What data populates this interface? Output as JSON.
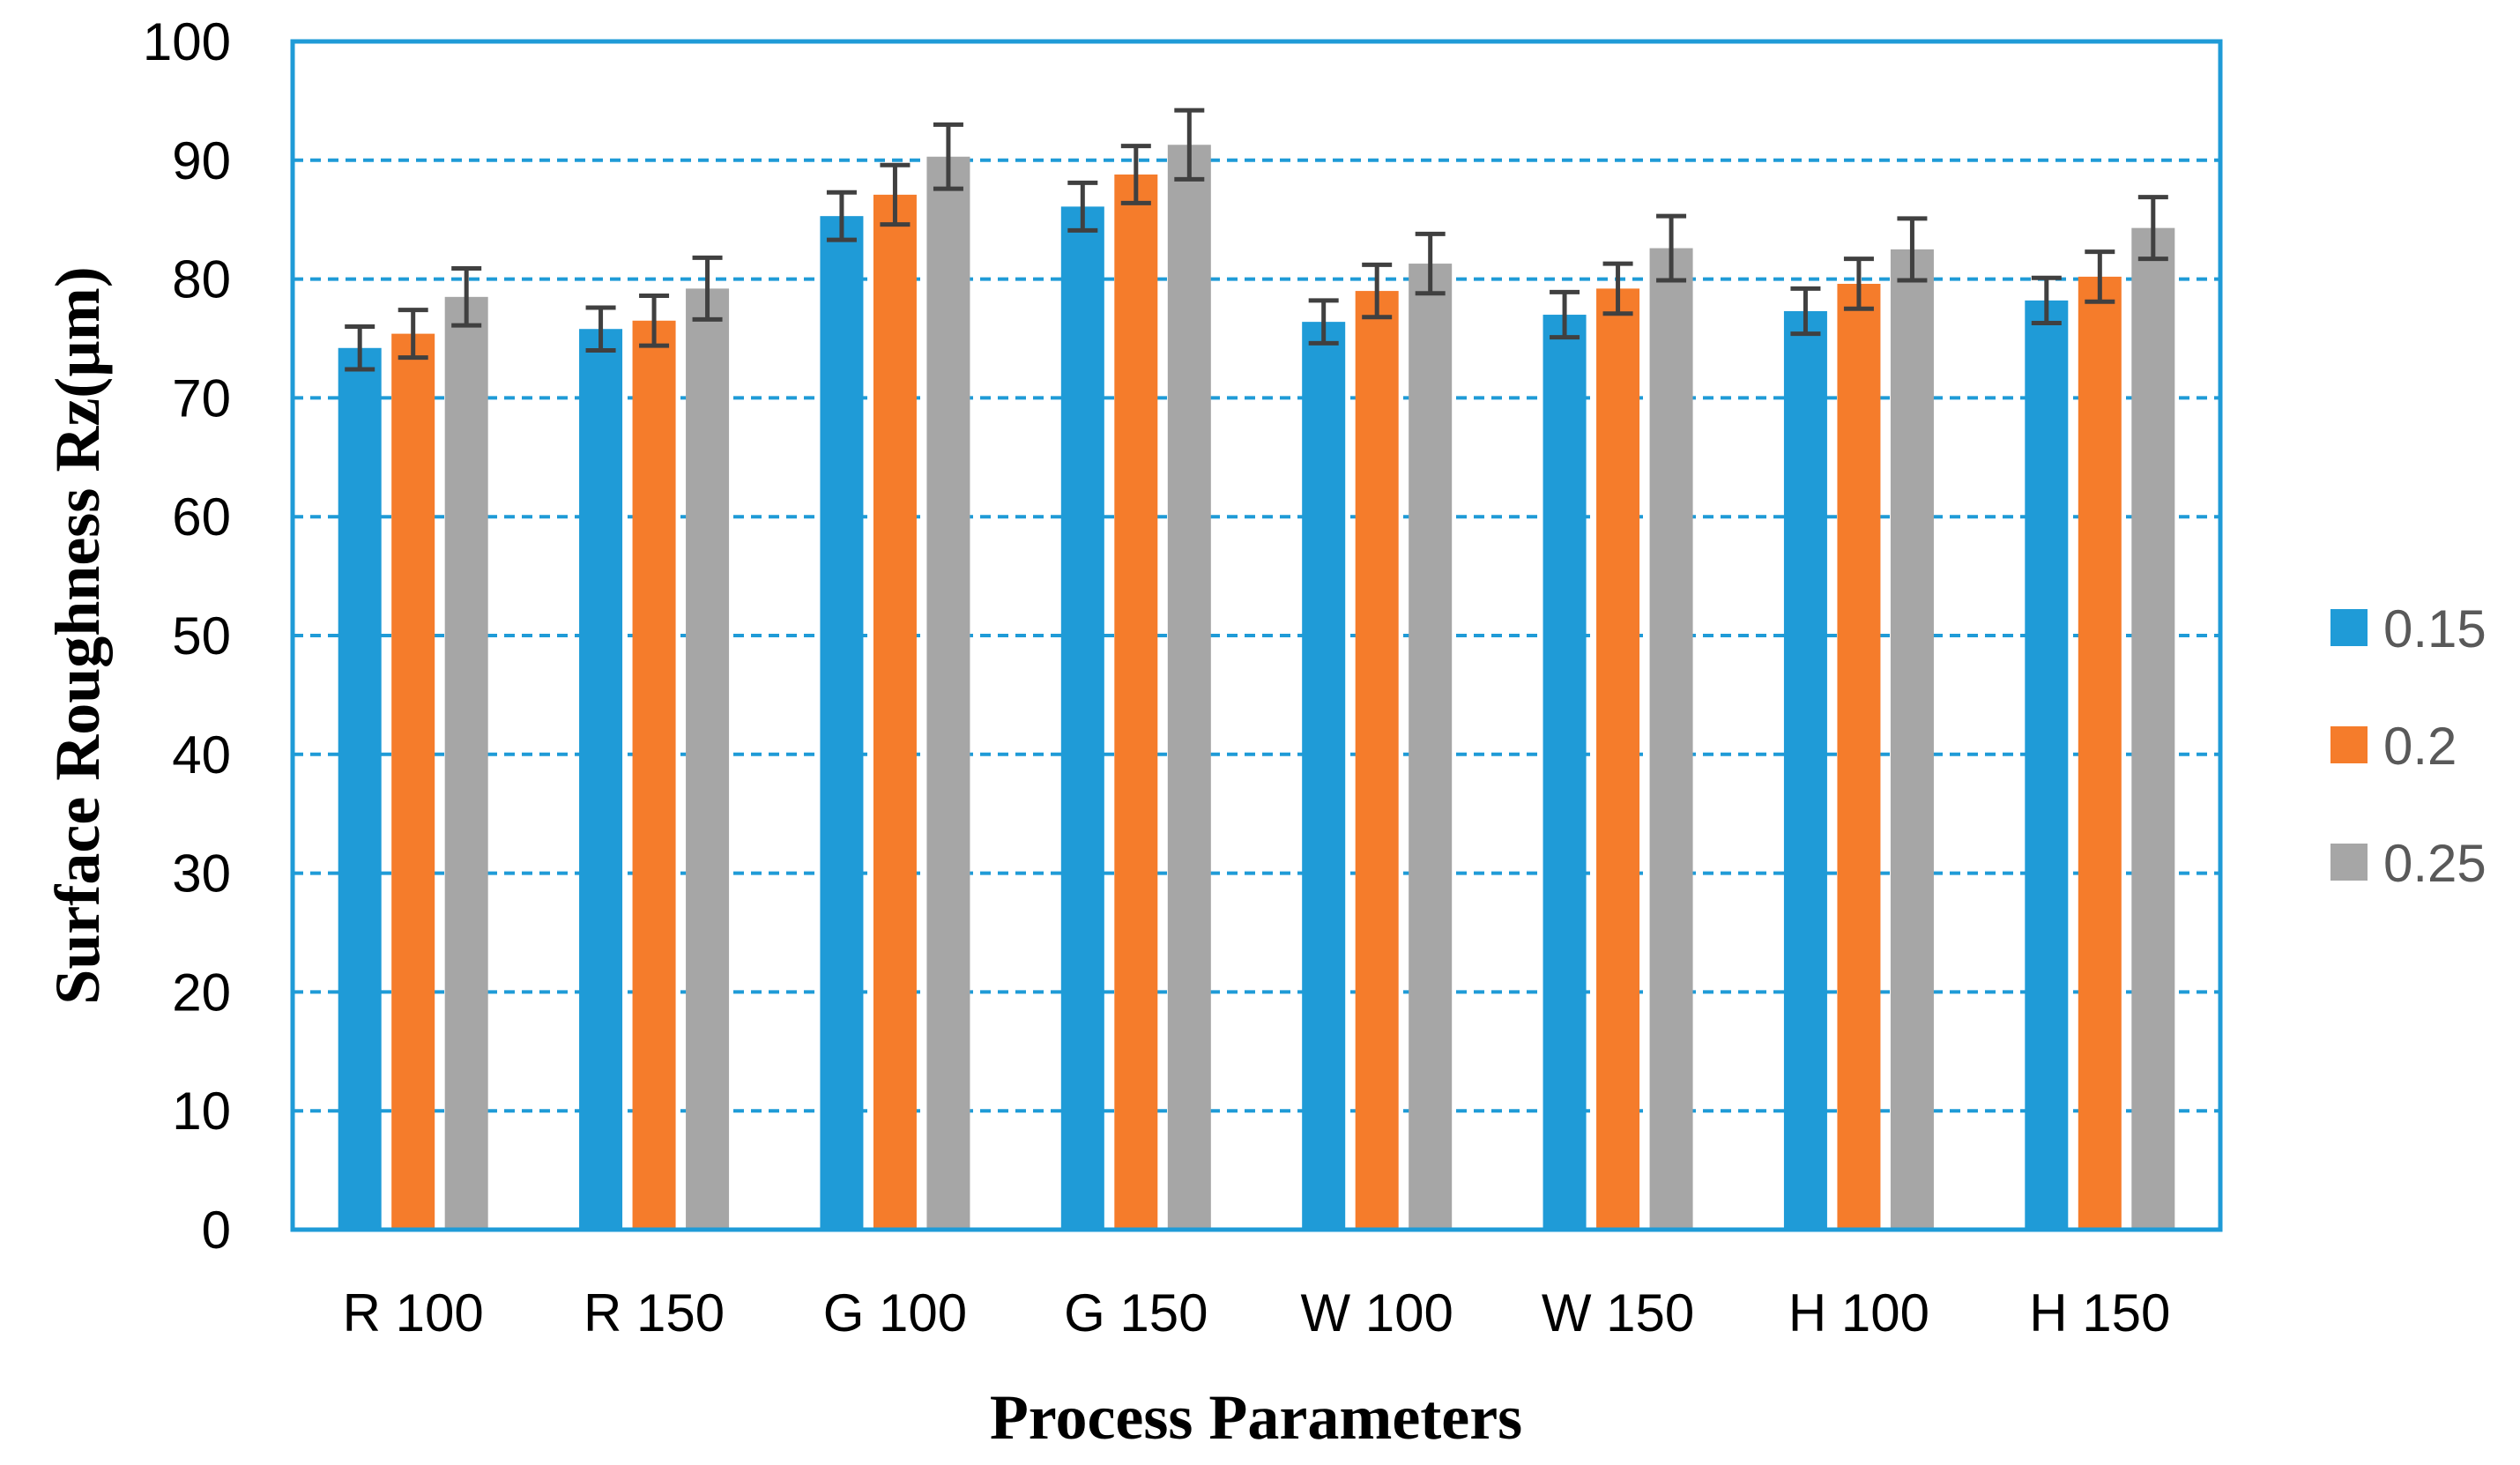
{
  "chart_data": {
    "type": "bar",
    "title": "",
    "xlabel": "Process Parameters",
    "ylabel": "Surface  Roughness Rz(µm)",
    "ylim": [
      0,
      100
    ],
    "yticks": [
      0,
      10,
      20,
      30,
      40,
      50,
      60,
      70,
      80,
      90,
      100
    ],
    "grid": true,
    "legend_position": "right",
    "categories": [
      "R 100",
      "R 150",
      "G 100",
      "G 150",
      "W 100",
      "W 150",
      "H 100",
      "H 150"
    ],
    "series": [
      {
        "name": "0.15",
        "color": "#1f9bd7",
        "values": [
          74.2,
          75.8,
          85.3,
          86.1,
          76.4,
          77.0,
          77.3,
          78.2
        ],
        "errors": [
          1.8,
          1.8,
          2.0,
          2.0,
          1.8,
          1.9,
          1.9,
          1.9
        ]
      },
      {
        "name": "0.2",
        "color": "#f57c2b",
        "values": [
          75.4,
          76.5,
          87.1,
          88.8,
          79.0,
          79.2,
          79.6,
          80.2
        ],
        "errors": [
          2.0,
          2.1,
          2.5,
          2.4,
          2.2,
          2.1,
          2.1,
          2.1
        ]
      },
      {
        "name": "0.25",
        "color": "#a6a6a6",
        "values": [
          78.5,
          79.2,
          90.3,
          91.3,
          81.3,
          82.6,
          82.5,
          84.3
        ],
        "errors": [
          2.4,
          2.6,
          2.7,
          2.9,
          2.5,
          2.7,
          2.6,
          2.6
        ]
      }
    ],
    "colors": {
      "frame": "#1f9bd7",
      "gridline": "#1f9bd7",
      "errorbar": "#404040"
    }
  }
}
